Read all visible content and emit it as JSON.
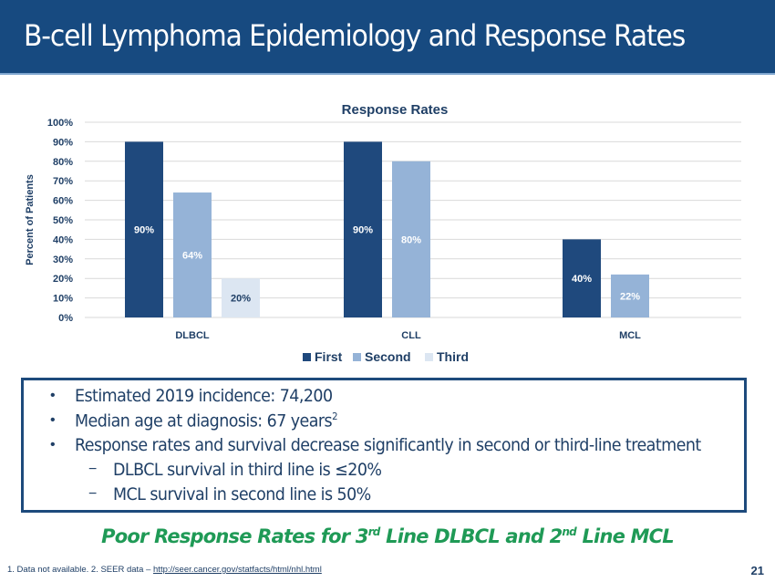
{
  "header": {
    "title": "B-cell Lymphoma Epidemiology and Response Rates"
  },
  "chart_data": {
    "type": "bar",
    "title": "Response Rates",
    "xlabel": "",
    "ylabel": "Percent of Patients",
    "ylim": [
      0,
      100
    ],
    "yticks": [
      "0%",
      "10%",
      "20%",
      "30%",
      "40%",
      "50%",
      "60%",
      "70%",
      "80%",
      "90%",
      "100%"
    ],
    "grid": true,
    "legend_position": "bottom",
    "categories": [
      "DLBCL",
      "CLL",
      "MCL"
    ],
    "series": [
      {
        "name": "First",
        "color": "#1f497d",
        "label_color": "#ffffff",
        "values": [
          90,
          90,
          40
        ]
      },
      {
        "name": "Second",
        "color": "#95b3d7",
        "label_color": "#ffffff",
        "values": [
          64,
          80,
          22
        ]
      },
      {
        "name": "Third",
        "color": "#dce6f2",
        "label_color": "#1f3f66",
        "values": [
          20,
          null,
          null
        ]
      }
    ],
    "data_labels": [
      [
        "90%",
        "64%",
        "20%"
      ],
      [
        "90%",
        "80%",
        null
      ],
      [
        "40%",
        "22%",
        null
      ]
    ]
  },
  "bullets": [
    {
      "type": "bullet",
      "text": "Estimated 2019 incidence: 74,200",
      "sup": ""
    },
    {
      "type": "bullet",
      "text": "Median age at diagnosis: 67 years",
      "sup": "2"
    },
    {
      "type": "bullet",
      "text": "Response rates and survival decrease significantly in second or third-line treatment",
      "sup": ""
    },
    {
      "type": "dash",
      "text": "DLBCL survival in third line is ≤20%",
      "sup": ""
    },
    {
      "type": "dash",
      "text": "MCL survival in second line is 50%",
      "sup": ""
    }
  ],
  "markers": {
    "bullet": "•",
    "dash": "−"
  },
  "conclusion": {
    "part1": "Poor Response Rates for 3",
    "sup1": "rd",
    "part2": " Line DLBCL and 2",
    "sup2": "nd",
    "part3": " Line MCL"
  },
  "footnote": {
    "text": "1. Data not available.  2.  SEER data – ",
    "link": "http://seer.cancer.gov/statfacts/html/nhl.html"
  },
  "page_number": "21",
  "colors": {
    "header": "#174a80",
    "text": "#1f3f66",
    "accent_green": "#1f9a56"
  }
}
